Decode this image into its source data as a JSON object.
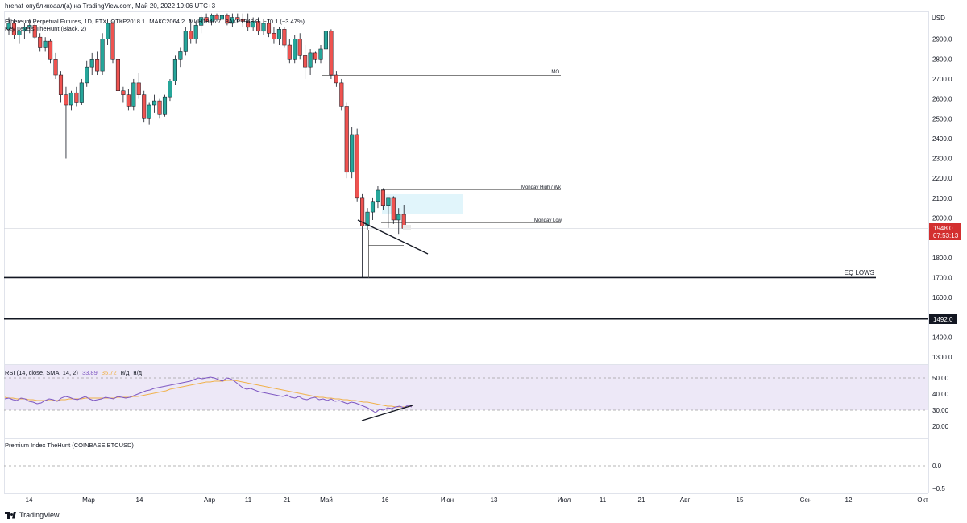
{
  "publisher": {
    "user": "hrenat",
    "text": "опубликоаал(а) на TradingView.com, Май 20, 2022 19:06 UTC+3"
  },
  "legend": {
    "symbol": "Ethereum Perpetual Futures, 1D, FTX",
    "open_label": "ОТКР",
    "open": "2018.1",
    "high_label": "МАКС",
    "high": "2064.2",
    "low_label": "МИН",
    "low": "1946.7",
    "close_label": "ЗАКР",
    "close": "1948.0",
    "change": "−70.1 (−3.47%)",
    "indicator": "Key Levels TheHunt (Black, 2)"
  },
  "price_axis": {
    "currency": "USD",
    "ticks": [
      "2900.0",
      "2800.0",
      "2700.0",
      "2600.0",
      "2500.0",
      "2400.0",
      "2300.0",
      "2200.0",
      "2100.0",
      "2000.0",
      "1900.0",
      "1800.0",
      "1700.0",
      "1600.0",
      "1500.0",
      "1400.0",
      "1300.0"
    ],
    "last_price": "1948.0",
    "countdown": "07:53:13",
    "level_badge": "1492.0",
    "last_color": "#d32f2f"
  },
  "levels": {
    "mo": {
      "label": "MO",
      "price": 2718
    },
    "monday_high": {
      "label": "Monday High / Wk",
      "price": 2143
    },
    "monday_low": {
      "label": "Monday Low",
      "price": 1977
    },
    "eq_lows": {
      "label": "EQ LOWS",
      "price": 1700
    },
    "key_level": {
      "price": 1492
    },
    "current": {
      "price": 1948
    }
  },
  "rsi": {
    "label": "RSI (14, close, SMA, 14, 2)",
    "rsi_value": "33.89",
    "sma_value": "35.72",
    "na1": "н/д",
    "na2": "н/д",
    "ticks": [
      "50.00",
      "40.00",
      "30.00",
      "20.00"
    ],
    "upper_band": 70,
    "lower_band": 30,
    "rsi_color": "#7e57c2",
    "sma_color": "#f0b14a"
  },
  "premium": {
    "label": "Premium Index TheHunt (COINBASE:BTCUSD)",
    "ticks": [
      "0.0",
      "−0.5"
    ]
  },
  "time_axis": {
    "labels": [
      "14",
      "Мар",
      "14",
      "Апр",
      "11",
      "21",
      "Май",
      "16",
      "Июн",
      "13",
      "Июл",
      "11",
      "21",
      "Авг",
      "15",
      "Сен",
      "12",
      "Окт"
    ]
  },
  "footer": {
    "brand": "TradingView"
  },
  "colors": {
    "up": "#26a69a",
    "down": "#ef5350",
    "box": "#e1f5fb"
  },
  "chart_data": {
    "type": "candlestick",
    "timeframe": "1D",
    "candles": [
      {
        "o": 2950,
        "h": 3010,
        "l": 2920,
        "c": 2980
      },
      {
        "o": 2980,
        "h": 3000,
        "l": 2900,
        "c": 2920
      },
      {
        "o": 2920,
        "h": 2960,
        "l": 2880,
        "c": 2940
      },
      {
        "o": 2940,
        "h": 2980,
        "l": 2900,
        "c": 2960
      },
      {
        "o": 2960,
        "h": 3000,
        "l": 2930,
        "c": 2970
      },
      {
        "o": 2970,
        "h": 2990,
        "l": 2900,
        "c": 2910
      },
      {
        "o": 2910,
        "h": 2930,
        "l": 2840,
        "c": 2860
      },
      {
        "o": 2860,
        "h": 2910,
        "l": 2840,
        "c": 2890
      },
      {
        "o": 2890,
        "h": 2900,
        "l": 2780,
        "c": 2800
      },
      {
        "o": 2800,
        "h": 2830,
        "l": 2700,
        "c": 2720
      },
      {
        "o": 2720,
        "h": 2740,
        "l": 2580,
        "c": 2620
      },
      {
        "o": 2620,
        "h": 2660,
        "l": 2300,
        "c": 2570
      },
      {
        "o": 2570,
        "h": 2640,
        "l": 2540,
        "c": 2630
      },
      {
        "o": 2630,
        "h": 2660,
        "l": 2560,
        "c": 2580
      },
      {
        "o": 2580,
        "h": 2700,
        "l": 2570,
        "c": 2680
      },
      {
        "o": 2680,
        "h": 2790,
        "l": 2660,
        "c": 2760
      },
      {
        "o": 2760,
        "h": 2830,
        "l": 2720,
        "c": 2800
      },
      {
        "o": 2800,
        "h": 2840,
        "l": 2720,
        "c": 2740
      },
      {
        "o": 2740,
        "h": 2930,
        "l": 2720,
        "c": 2900
      },
      {
        "o": 2900,
        "h": 3000,
        "l": 2870,
        "c": 2980
      },
      {
        "o": 2980,
        "h": 2990,
        "l": 2780,
        "c": 2800
      },
      {
        "o": 2800,
        "h": 2820,
        "l": 2620,
        "c": 2640
      },
      {
        "o": 2640,
        "h": 2660,
        "l": 2580,
        "c": 2620
      },
      {
        "o": 2620,
        "h": 2650,
        "l": 2540,
        "c": 2560
      },
      {
        "o": 2560,
        "h": 2700,
        "l": 2540,
        "c": 2680
      },
      {
        "o": 2680,
        "h": 2730,
        "l": 2600,
        "c": 2620
      },
      {
        "o": 2620,
        "h": 2640,
        "l": 2480,
        "c": 2500
      },
      {
        "o": 2500,
        "h": 2580,
        "l": 2470,
        "c": 2570
      },
      {
        "o": 2570,
        "h": 2620,
        "l": 2530,
        "c": 2590
      },
      {
        "o": 2590,
        "h": 2600,
        "l": 2500,
        "c": 2520
      },
      {
        "o": 2520,
        "h": 2620,
        "l": 2510,
        "c": 2610
      },
      {
        "o": 2610,
        "h": 2700,
        "l": 2590,
        "c": 2690
      },
      {
        "o": 2690,
        "h": 2820,
        "l": 2670,
        "c": 2800
      },
      {
        "o": 2800,
        "h": 2860,
        "l": 2760,
        "c": 2840
      },
      {
        "o": 2840,
        "h": 2960,
        "l": 2820,
        "c": 2940
      },
      {
        "o": 2940,
        "h": 3000,
        "l": 2880,
        "c": 2900
      },
      {
        "o": 2900,
        "h": 2990,
        "l": 2880,
        "c": 2970
      },
      {
        "o": 2970,
        "h": 3020,
        "l": 2930,
        "c": 3010
      },
      {
        "o": 3010,
        "h": 3030,
        "l": 2980,
        "c": 2990
      },
      {
        "o": 2990,
        "h": 3030,
        "l": 2970,
        "c": 3020
      },
      {
        "o": 3020,
        "h": 3030,
        "l": 2990,
        "c": 3000
      },
      {
        "o": 3000,
        "h": 3030,
        "l": 2980,
        "c": 3020
      },
      {
        "o": 3020,
        "h": 3030,
        "l": 2970,
        "c": 2980
      },
      {
        "o": 2980,
        "h": 3030,
        "l": 2960,
        "c": 3010
      },
      {
        "o": 3010,
        "h": 3030,
        "l": 2990,
        "c": 3000
      },
      {
        "o": 3000,
        "h": 3030,
        "l": 2960,
        "c": 2990
      },
      {
        "o": 2990,
        "h": 3030,
        "l": 2940,
        "c": 2960
      },
      {
        "o": 2960,
        "h": 3010,
        "l": 2940,
        "c": 2990
      },
      {
        "o": 2990,
        "h": 3010,
        "l": 2920,
        "c": 2940
      },
      {
        "o": 2940,
        "h": 3000,
        "l": 2920,
        "c": 2980
      },
      {
        "o": 2980,
        "h": 3000,
        "l": 2910,
        "c": 2930
      },
      {
        "o": 2930,
        "h": 2960,
        "l": 2880,
        "c": 2900
      },
      {
        "o": 2900,
        "h": 2960,
        "l": 2870,
        "c": 2950
      },
      {
        "o": 2950,
        "h": 2960,
        "l": 2860,
        "c": 2870
      },
      {
        "o": 2870,
        "h": 2900,
        "l": 2780,
        "c": 2800
      },
      {
        "o": 2800,
        "h": 2920,
        "l": 2780,
        "c": 2900
      },
      {
        "o": 2900,
        "h": 2930,
        "l": 2800,
        "c": 2820
      },
      {
        "o": 2820,
        "h": 2870,
        "l": 2700,
        "c": 2760
      },
      {
        "o": 2760,
        "h": 2850,
        "l": 2720,
        "c": 2830
      },
      {
        "o": 2830,
        "h": 2840,
        "l": 2780,
        "c": 2800
      },
      {
        "o": 2800,
        "h": 2870,
        "l": 2780,
        "c": 2850
      },
      {
        "o": 2850,
        "h": 2960,
        "l": 2830,
        "c": 2940
      },
      {
        "o": 2940,
        "h": 2950,
        "l": 2700,
        "c": 2720
      },
      {
        "o": 2720,
        "h": 2740,
        "l": 2660,
        "c": 2680
      },
      {
        "o": 2680,
        "h": 2700,
        "l": 2540,
        "c": 2560
      },
      {
        "o": 2560,
        "h": 2580,
        "l": 2200,
        "c": 2230
      },
      {
        "o": 2230,
        "h": 2460,
        "l": 2200,
        "c": 2420
      },
      {
        "o": 2420,
        "h": 2450,
        "l": 2080,
        "c": 2100
      },
      {
        "o": 2100,
        "h": 2120,
        "l": 1700,
        "c": 1960
      },
      {
        "o": 1960,
        "h": 2050,
        "l": 1940,
        "c": 2030
      },
      {
        "o": 2030,
        "h": 2100,
        "l": 1990,
        "c": 2080
      },
      {
        "o": 2080,
        "h": 2160,
        "l": 2050,
        "c": 2140
      },
      {
        "o": 2140,
        "h": 2150,
        "l": 2040,
        "c": 2060
      },
      {
        "o": 2060,
        "h": 2100,
        "l": 1950,
        "c": 2100
      },
      {
        "o": 2100,
        "h": 2110,
        "l": 1970,
        "c": 1990
      },
      {
        "o": 1990,
        "h": 2050,
        "l": 1920,
        "c": 2018
      },
      {
        "o": 2018.1,
        "h": 2064.2,
        "l": 1946.7,
        "c": 1948.0
      }
    ],
    "rsi_series": [
      44,
      45,
      43,
      42,
      45,
      44,
      41,
      40,
      38,
      39,
      42,
      44,
      43,
      41,
      45,
      47,
      46,
      44,
      43,
      45,
      47,
      44,
      42,
      43,
      44,
      46,
      45,
      44,
      47,
      46,
      45,
      46,
      48,
      50,
      52,
      54,
      55,
      57,
      58,
      59,
      60,
      61,
      62,
      63,
      64,
      65,
      66,
      68,
      70,
      69,
      70,
      71,
      70,
      68,
      66,
      70,
      69,
      66,
      62,
      58,
      56,
      57,
      55,
      53,
      52,
      51,
      50,
      49,
      48,
      47,
      49,
      46,
      45,
      47,
      44,
      43,
      45,
      46,
      43,
      44,
      42,
      44,
      41,
      42,
      40,
      38,
      40,
      39,
      37,
      35,
      33,
      30,
      27,
      31,
      30,
      33,
      32,
      34,
      35,
      33,
      36,
      34
    ],
    "sma_series": [
      46,
      45,
      45,
      44,
      44,
      44,
      43,
      43,
      42,
      42,
      42,
      42,
      42,
      42,
      43,
      43,
      44,
      44,
      44,
      44,
      45,
      45,
      45,
      45,
      45,
      45,
      45,
      45,
      46,
      46,
      46,
      46,
      47,
      47,
      48,
      49,
      50,
      51,
      52,
      53,
      54,
      56,
      57,
      58,
      59,
      60,
      61,
      62,
      63,
      64,
      65,
      65,
      66,
      66,
      66,
      67,
      67,
      67,
      66,
      65,
      64,
      63,
      62,
      61,
      60,
      59,
      58,
      57,
      56,
      55,
      54,
      53,
      52,
      51,
      50,
      49,
      48,
      47,
      46,
      46,
      45,
      45,
      44,
      44,
      43,
      43,
      42,
      42,
      41,
      40,
      40,
      39,
      38,
      37,
      36,
      35,
      35,
      34,
      34,
      34,
      34,
      35
    ]
  }
}
